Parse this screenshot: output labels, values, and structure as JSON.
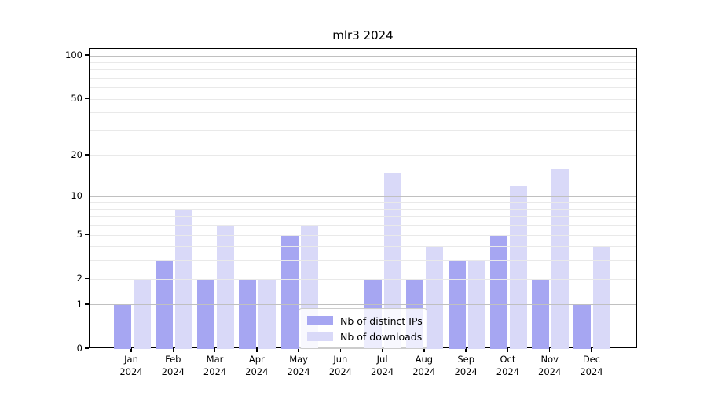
{
  "title": "mlr3 2024",
  "legend": {
    "items": [
      {
        "label": "Nb of distinct IPs"
      },
      {
        "label": "Nb of downloads"
      }
    ]
  },
  "chart_data": {
    "type": "bar",
    "title": "mlr3 2024",
    "categories": [
      "Jan",
      "Feb",
      "Mar",
      "Apr",
      "May",
      "Jun",
      "Jul",
      "Aug",
      "Sep",
      "Oct",
      "Nov",
      "Dec"
    ],
    "year_label": "2024",
    "series": [
      {
        "name": "Nb of distinct IPs",
        "color": "#a6a6f2",
        "values": [
          1,
          3,
          2,
          2,
          5,
          0,
          2,
          2,
          3,
          5,
          2,
          1
        ]
      },
      {
        "name": "Nb of downloads",
        "color": "#d9d9f8",
        "values": [
          2,
          8,
          6,
          2,
          6,
          0,
          15,
          4,
          3,
          12,
          16,
          4
        ]
      }
    ],
    "xlabel": "",
    "ylabel": "",
    "yscale": "log1p",
    "ylim": [
      0,
      112
    ],
    "yticks": [
      0,
      1,
      2,
      5,
      10,
      20,
      50,
      100
    ],
    "grid": {
      "on": true,
      "major_lines": [
        1,
        10,
        100
      ],
      "minor_lines": [
        2,
        3,
        4,
        5,
        6,
        7,
        8,
        9,
        20,
        30,
        40,
        50,
        60,
        70,
        80,
        90
      ]
    },
    "legend_position": "lower center",
    "colors": {
      "grid_major": "#c0c0c0",
      "grid_minor": "#e9e9e9",
      "spine": "#000000",
      "background": "#ffffff"
    }
  }
}
